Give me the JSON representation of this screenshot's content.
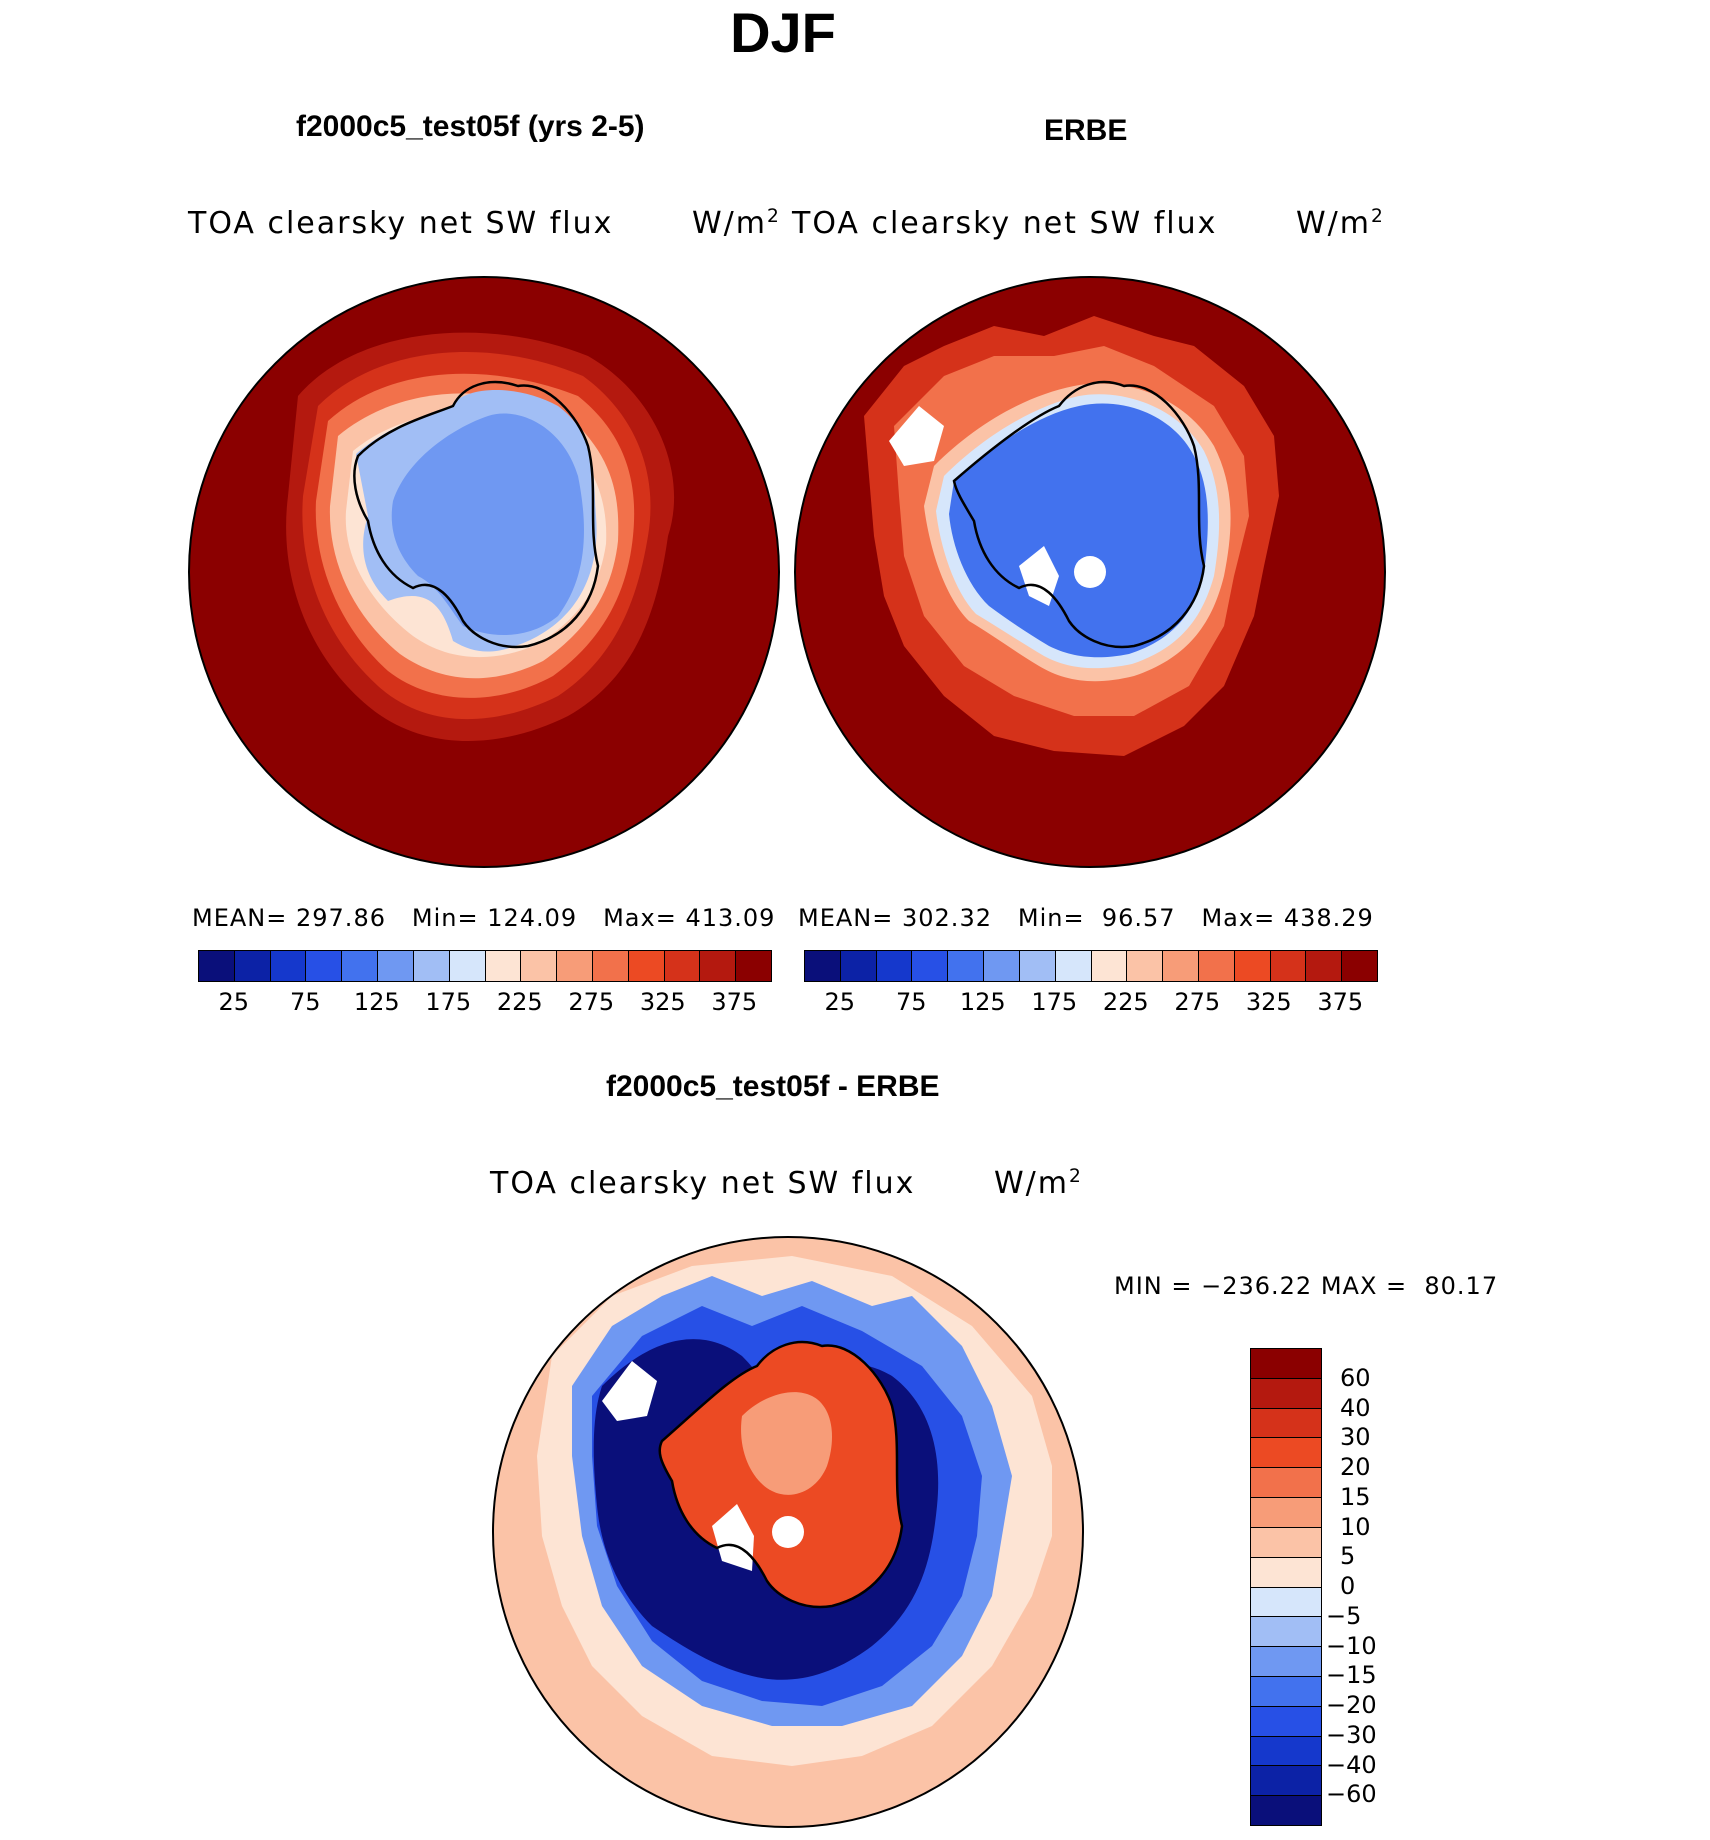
{
  "title": "DJF",
  "panels": [
    {
      "title": "f2000c5_test05f (yrs 2-5)",
      "variable": "TOA clearsky net SW flux",
      "units_base": "W/m",
      "units_exp": "2",
      "stats": {
        "mean_label": "MEAN=",
        "mean": "297.86",
        "min_label": "Min=",
        "min": "124.09",
        "max_label": "Max=",
        "max": "413.09"
      }
    },
    {
      "title": "ERBE",
      "variable": "TOA clearsky net SW flux",
      "units_base": "W/m",
      "units_exp": "2",
      "stats": {
        "mean_label": "MEAN=",
        "mean": "302.32",
        "min_label": "Min=",
        "min": "96.57",
        "max_label": "Max=",
        "max": "438.29"
      }
    },
    {
      "title": "f2000c5_test05f - ERBE",
      "variable": "TOA clearsky net SW flux",
      "units_base": "W/m",
      "units_exp": "2",
      "stats_text": "MIN = −236.22 MAX =  80.17"
    }
  ],
  "colorbar_abs": {
    "ticks": [
      "25",
      "75",
      "125",
      "175",
      "225",
      "275",
      "325",
      "375"
    ],
    "colors": [
      "#0a0f7a",
      "#0c22a6",
      "#1538cc",
      "#2750e6",
      "#4272ee",
      "#6f98f2",
      "#a1bef5",
      "#d6e6fb",
      "#fde4d4",
      "#fbc3a7",
      "#f79c78",
      "#f2714b",
      "#ec4a23",
      "#d5321a",
      "#b4190f",
      "#8b0000"
    ]
  },
  "colorbar_diff": {
    "labels": [
      "60",
      "40",
      "30",
      "20",
      "15",
      "10",
      "5",
      "0",
      "−5",
      "−10",
      "−15",
      "−20",
      "−30",
      "−40",
      "−60"
    ],
    "colors": [
      "#8b0000",
      "#b4190f",
      "#d5321a",
      "#ec4a23",
      "#f2714b",
      "#f79c78",
      "#fbc3a7",
      "#fde4d4",
      "#d6e6fb",
      "#a1bef5",
      "#6f98f2",
      "#4272ee",
      "#2750e6",
      "#1538cc",
      "#0c22a6",
      "#0a0f7a"
    ]
  }
}
